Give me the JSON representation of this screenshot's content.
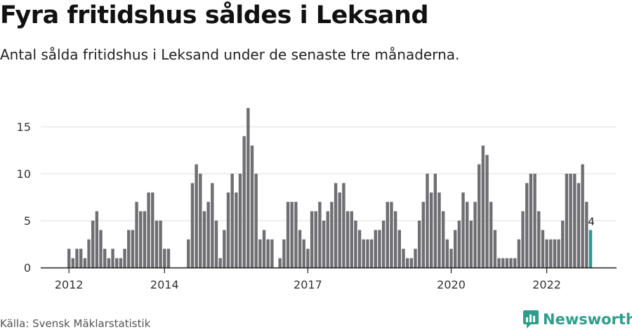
{
  "header": {
    "title": "Fyra fritidshus såldes i Leksand",
    "subtitle": "Antal sålda fritidshus i Leksand under de senaste tre månaderna."
  },
  "footer": {
    "source": "Källa: Svensk Mäklarstatistik",
    "brand": "Newsworthy"
  },
  "colors": {
    "bar": "#6e6e73",
    "highlight": "#1f9e9a",
    "grid": "#dddddd",
    "axis": "#222222",
    "brand": "#2e9e8c"
  },
  "chart_data": {
    "type": "bar",
    "ylim": [
      0,
      17
    ],
    "yticks": [
      0,
      5,
      10,
      15
    ],
    "xticks": [
      "2012",
      "2014",
      "2017",
      "2020",
      "2022"
    ],
    "grid": true,
    "highlight_label": "4",
    "values": [
      2,
      1,
      2,
      2,
      1,
      3,
      5,
      6,
      4,
      2,
      1,
      2,
      1,
      1,
      2,
      4,
      4,
      7,
      6,
      6,
      8,
      8,
      5,
      5,
      2,
      2,
      0,
      0,
      0,
      0,
      3,
      9,
      11,
      10,
      6,
      7,
      9,
      5,
      1,
      4,
      8,
      10,
      8,
      10,
      14,
      17,
      13,
      10,
      3,
      4,
      3,
      3,
      0,
      1,
      3,
      7,
      7,
      7,
      4,
      3,
      2,
      6,
      6,
      7,
      5,
      6,
      7,
      9,
      8,
      9,
      6,
      6,
      5,
      4,
      3,
      3,
      3,
      4,
      4,
      5,
      7,
      7,
      6,
      4,
      2,
      1,
      1,
      2,
      5,
      7,
      10,
      8,
      10,
      8,
      6,
      3,
      2,
      4,
      5,
      8,
      7,
      5,
      7,
      11,
      13,
      12,
      7,
      4,
      1,
      1,
      1,
      1,
      1,
      3,
      6,
      9,
      10,
      10,
      6,
      4,
      3,
      3,
      3,
      3,
      5,
      10,
      10,
      10,
      9,
      11,
      7,
      4
    ]
  }
}
